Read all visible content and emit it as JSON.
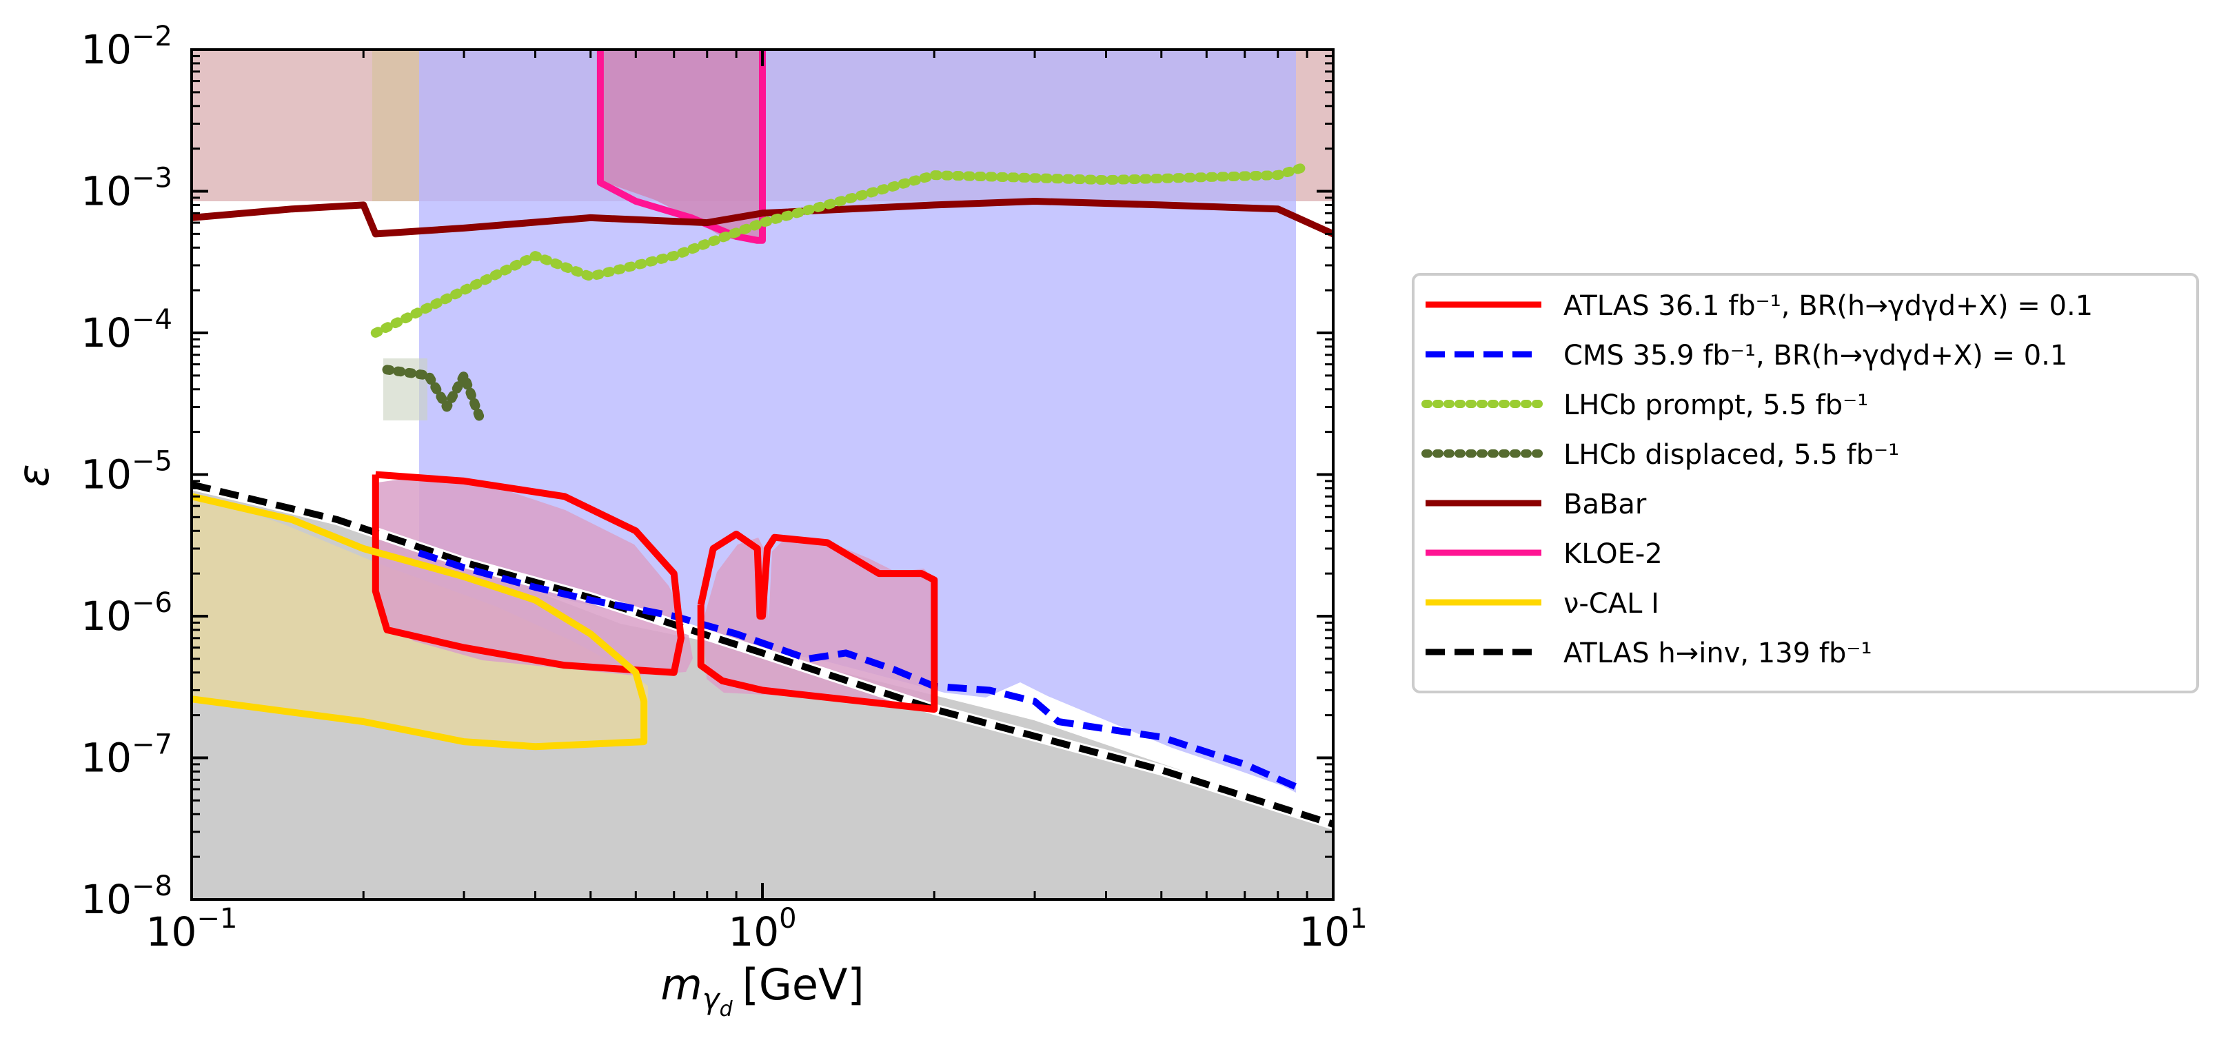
{
  "chart_data": {
    "type": "line",
    "title": "",
    "xlabel_main": "m",
    "xlabel_sub": "γ",
    "xlabel_subsub": "d",
    "xlabel_unit": "[GeV]",
    "ylabel": "ε",
    "xscale": "log",
    "yscale": "log",
    "xlim": [
      0.1,
      10
    ],
    "ylim": [
      1e-08,
      0.01
    ],
    "x_ticks": [
      {
        "value": 0.1,
        "base": "10",
        "exp": "−1"
      },
      {
        "value": 1,
        "base": "10",
        "exp": "0"
      },
      {
        "value": 10,
        "base": "10",
        "exp": "1"
      }
    ],
    "y_ticks": [
      {
        "value": 1e-08,
        "base": "10",
        "exp": "−8"
      },
      {
        "value": 1e-07,
        "base": "10",
        "exp": "−7"
      },
      {
        "value": 1e-06,
        "base": "10",
        "exp": "−6"
      },
      {
        "value": 1e-05,
        "base": "10",
        "exp": "−5"
      },
      {
        "value": 0.0001,
        "base": "10",
        "exp": "−4"
      },
      {
        "value": 0.001,
        "base": "10",
        "exp": "−3"
      },
      {
        "value": 0.01,
        "base": "10",
        "exp": "−2"
      }
    ],
    "legend": {
      "placement": "outside-right",
      "entries": [
        {
          "id": "atlas",
          "text": "ATLAS 36.1 fb⁻¹, BR(h→γdγd+X) = 0.1",
          "color": "#ff0000",
          "style": "solid"
        },
        {
          "id": "cms",
          "text": "CMS 35.9 fb⁻¹, BR(h→γdγd+X) = 0.1",
          "color": "#0000ff",
          "style": "dashed"
        },
        {
          "id": "lhcb_prompt",
          "text": "LHCb prompt, 5.5 fb⁻¹",
          "color": "#9acd32",
          "style": "dotted"
        },
        {
          "id": "lhcb_displaced",
          "text": "LHCb displaced, 5.5 fb⁻¹",
          "color": "#556b2f",
          "style": "dotted"
        },
        {
          "id": "babar",
          "text": "BaBar",
          "color": "#8b0000",
          "style": "solid"
        },
        {
          "id": "kloe",
          "text": "KLOE-2",
          "color": "#ff1493",
          "style": "solid"
        },
        {
          "id": "nucal",
          "text": "ν-CAL I",
          "color": "#ffd700",
          "style": "solid"
        },
        {
          "id": "atlas_inv",
          "text": "ATLAS h→inv, 139 fb⁻¹",
          "color": "#000000",
          "style": "dashed"
        }
      ]
    },
    "series": [
      {
        "name": "ATLAS h→inv, 139 fb⁻¹",
        "id": "atlas_inv",
        "points": [
          [
            0.1,
            8.5e-06
          ],
          [
            0.18,
            4.8e-06
          ],
          [
            0.3,
            2.4e-06
          ],
          [
            0.5,
            1.35e-06
          ],
          [
            1.0,
            5.5e-07
          ],
          [
            2.0,
            2.2e-07
          ],
          [
            5.0,
            8.2e-08
          ],
          [
            10,
            3.4e-08
          ]
        ]
      },
      {
        "name": "CMS 35.9 fb⁻¹",
        "id": "cms",
        "points": [
          [
            0.25,
            2.8e-06
          ],
          [
            0.3,
            2.2e-06
          ],
          [
            0.4,
            1.6e-06
          ],
          [
            0.5,
            1.3e-06
          ],
          [
            0.7,
            1e-06
          ],
          [
            0.9,
            7.5e-07
          ],
          [
            1.2,
            5e-07
          ],
          [
            1.4,
            5.5e-07
          ],
          [
            1.7,
            4.2e-07
          ],
          [
            2.0,
            3.2e-07
          ],
          [
            2.5,
            3e-07
          ],
          [
            3.0,
            2.5e-07
          ],
          [
            3.3,
            1.8e-07
          ],
          [
            4.0,
            1.6e-07
          ],
          [
            5.0,
            1.4e-07
          ],
          [
            6.0,
            1.1e-07
          ],
          [
            7.0,
            9e-08
          ],
          [
            8.8,
            6e-08
          ]
        ]
      },
      {
        "name": "ATLAS 36.1 fb⁻¹ (low-mass contour)",
        "id": "atlas",
        "points": [
          [
            0.21,
            1e-05
          ],
          [
            0.3,
            9e-06
          ],
          [
            0.45,
            7e-06
          ],
          [
            0.6,
            4e-06
          ],
          [
            0.7,
            2e-06
          ],
          [
            0.72,
            7e-07
          ],
          [
            0.7,
            4e-07
          ],
          [
            0.45,
            4.5e-07
          ],
          [
            0.3,
            6e-07
          ],
          [
            0.22,
            8e-07
          ],
          [
            0.21,
            1.5e-06
          ],
          [
            0.21,
            1e-05
          ]
        ]
      },
      {
        "name": "ATLAS 36.1 fb⁻¹ (high-mass contour)",
        "id": "atlas",
        "points": [
          [
            0.78,
            1.2e-06
          ],
          [
            0.82,
            3e-06
          ],
          [
            0.9,
            3.8e-06
          ],
          [
            0.98,
            3e-06
          ],
          [
            0.99,
            1e-06
          ],
          [
            1.0,
            1e-06
          ],
          [
            1.02,
            3e-06
          ],
          [
            1.05,
            3.6e-06
          ],
          [
            1.3,
            3.3e-06
          ],
          [
            1.6,
            2e-06
          ],
          [
            1.9,
            2e-06
          ],
          [
            2.0,
            1.8e-06
          ],
          [
            2.0,
            2.2e-07
          ],
          [
            1.5,
            2.5e-07
          ],
          [
            1.0,
            3e-07
          ],
          [
            0.85,
            3.5e-07
          ],
          [
            0.78,
            4.5e-07
          ],
          [
            0.78,
            1.2e-06
          ]
        ]
      },
      {
        "name": "ν-CAL I",
        "id": "nucal",
        "points": [
          [
            0.1,
            7e-06
          ],
          [
            0.15,
            4.8e-06
          ],
          [
            0.2,
            3e-06
          ],
          [
            0.3,
            1.9e-06
          ],
          [
            0.4,
            1.3e-06
          ],
          [
            0.5,
            7.5e-07
          ],
          [
            0.6,
            4e-07
          ],
          [
            0.62,
            2.5e-07
          ],
          [
            0.62,
            1.3e-07
          ],
          [
            0.4,
            1.2e-07
          ],
          [
            0.3,
            1.3e-07
          ],
          [
            0.2,
            1.8e-07
          ],
          [
            0.1,
            2.6e-07
          ]
        ]
      },
      {
        "name": "KLOE-2",
        "id": "kloe",
        "points": [
          [
            0.52,
            0.01
          ],
          [
            0.52,
            0.00115
          ],
          [
            0.6,
            0.00085
          ],
          [
            0.75,
            0.00065
          ],
          [
            0.9,
            0.00048
          ],
          [
            0.98,
            0.00045
          ],
          [
            1.0,
            0.00045
          ],
          [
            1.0,
            0.01
          ]
        ]
      },
      {
        "name": "BaBar (approximate)",
        "id": "babar",
        "points": [
          [
            0.1,
            0.00065
          ],
          [
            0.15,
            0.00075
          ],
          [
            0.2,
            0.0008
          ],
          [
            0.21,
            0.0005
          ],
          [
            0.3,
            0.00055
          ],
          [
            0.5,
            0.00065
          ],
          [
            0.8,
            0.0006
          ],
          [
            1.0,
            0.0007
          ],
          [
            2.0,
            0.0008
          ],
          [
            3.0,
            0.00085
          ],
          [
            5.0,
            0.0008
          ],
          [
            8.0,
            0.00075
          ],
          [
            10,
            0.0005
          ]
        ]
      },
      {
        "name": "LHCb prompt (approximate)",
        "id": "lhcb_prompt",
        "points": [
          [
            0.21,
            0.0001
          ],
          [
            0.3,
            0.0002
          ],
          [
            0.4,
            0.00035
          ],
          [
            0.5,
            0.00025
          ],
          [
            0.7,
            0.00035
          ],
          [
            1.0,
            0.0006
          ],
          [
            2.0,
            0.0013
          ],
          [
            4.0,
            0.0012
          ],
          [
            8.0,
            0.0013
          ],
          [
            9.0,
            0.0015
          ]
        ]
      },
      {
        "name": "LHCb displaced (approximate)",
        "id": "lhcb_displaced",
        "points": [
          [
            0.22,
            5.5e-05
          ],
          [
            0.26,
            5e-05
          ],
          [
            0.28,
            3e-05
          ],
          [
            0.3,
            5e-05
          ],
          [
            0.32,
            2.5e-05
          ]
        ]
      }
    ]
  }
}
